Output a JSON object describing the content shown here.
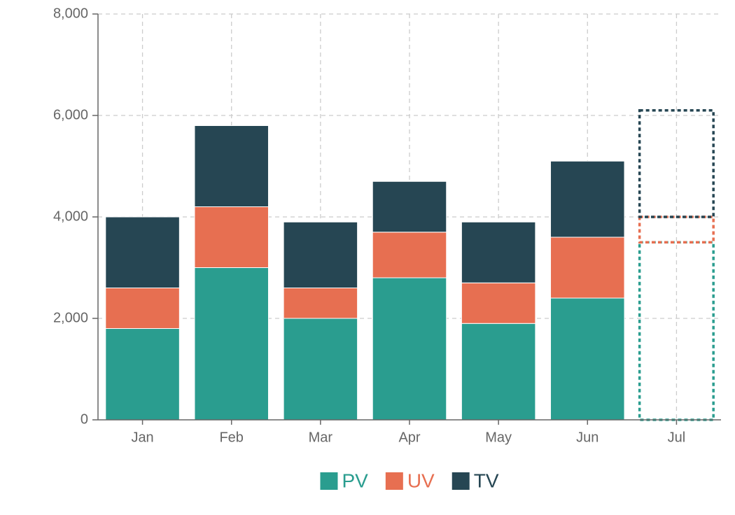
{
  "chart_data": {
    "type": "stacked_bar",
    "categories": [
      "Jan",
      "Feb",
      "Mar",
      "Apr",
      "May",
      "Jun",
      "Jul"
    ],
    "bar_style": [
      "solid",
      "solid",
      "solid",
      "solid",
      "solid",
      "solid",
      "dashed"
    ],
    "series": [
      {
        "name": "PV",
        "color": "#2a9d8f",
        "values": [
          1800,
          3000,
          2000,
          2800,
          1900,
          2400,
          3500
        ]
      },
      {
        "name": "UV",
        "color": "#e76f51",
        "values": [
          800,
          1200,
          600,
          900,
          800,
          1200,
          500
        ]
      },
      {
        "name": "TV",
        "color": "#264653",
        "values": [
          1400,
          1600,
          1300,
          1000,
          1200,
          1500,
          2100
        ]
      }
    ],
    "ylim": [
      0,
      8000
    ],
    "yticks": [
      0,
      {
        "value": 2000,
        "label": "2,000"
      },
      {
        "value": 4000,
        "label": "4,000"
      },
      {
        "value": 6000,
        "label": "6,000"
      },
      {
        "value": 8000,
        "label": "8,000"
      }
    ],
    "grid": true
  }
}
